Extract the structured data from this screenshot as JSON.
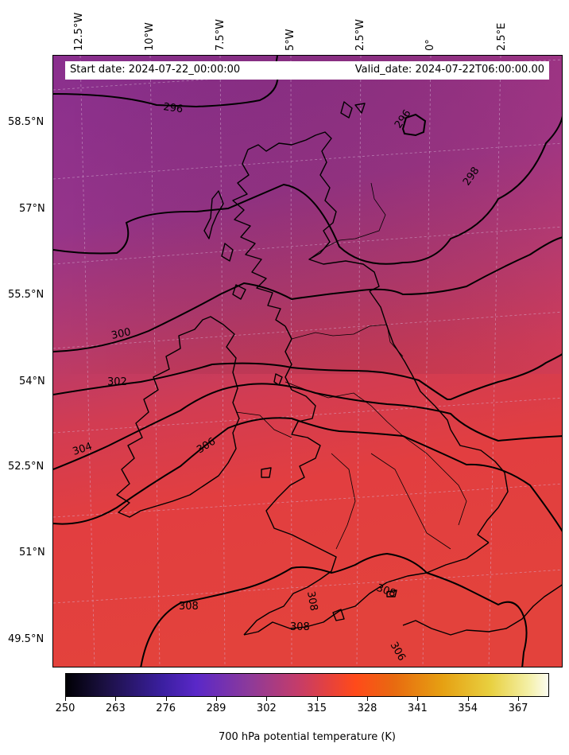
{
  "header": {
    "start_date": "Start date: 2024-07-22_00:00:00",
    "valid_date": "Valid_date: 2024-07-22T06:00:00.00"
  },
  "longitude_labels": [
    "12.5°W",
    "10°W",
    "7.5°W",
    "5°W",
    "2.5°W",
    "0°",
    "2.5°E"
  ],
  "latitude_labels": [
    "58.5°N",
    "57°N",
    "55.5°N",
    "54°N",
    "52.5°N",
    "51°N",
    "49.5°N"
  ],
  "contour_labels": [
    "296",
    "296",
    "298",
    "300",
    "302",
    "304",
    "306",
    "308",
    "308",
    "308",
    "308",
    "306"
  ],
  "colorbar": {
    "title": "700 hPa potential temperature (K)",
    "ticks": [
      "250",
      "263",
      "276",
      "289",
      "302",
      "315",
      "328",
      "341",
      "354",
      "367"
    ],
    "colormap": "CMRmap-like",
    "range": [
      250,
      375
    ]
  },
  "colors": {
    "field_north": "#8c3090",
    "field_south": "#e33d3d",
    "contour": "#000000",
    "coastline": "#000000"
  }
}
